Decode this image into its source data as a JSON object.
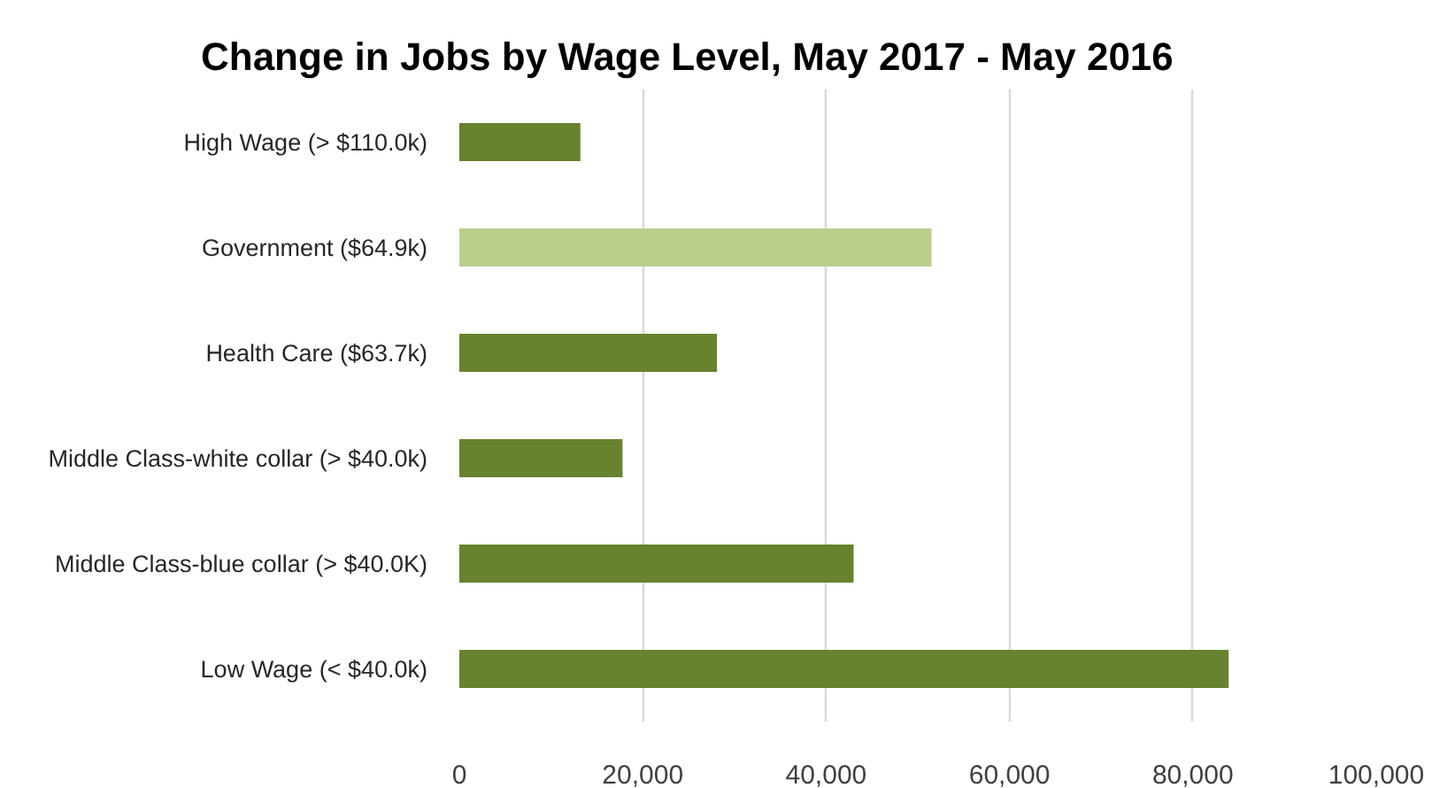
{
  "chart_data": {
    "type": "bar",
    "orientation": "horizontal",
    "title": "Change in Jobs by Wage Level, May 2017 - May 2016",
    "categories": [
      "High Wage (> $110.0k)",
      "Government ($64.9k)",
      "Health Care ($63.7k)",
      "Middle Class-white collar (> $40.0k)",
      "Middle Class-blue collar (> $40.0K)",
      "Low Wage (< $40.0k)"
    ],
    "values": [
      13200,
      51500,
      28100,
      17800,
      43000,
      83900
    ],
    "colors": [
      "#68822f",
      "#b9cf8b",
      "#68822f",
      "#68822f",
      "#68822f",
      "#68822f"
    ],
    "xlim": [
      0,
      100000
    ],
    "xticks": [
      0,
      {
        "value": 20000,
        "label": "20,000"
      },
      {
        "value": 40000,
        "label": "40,000"
      },
      {
        "value": 60000,
        "label": "60,000"
      },
      {
        "value": 80000,
        "label": "80,000"
      },
      {
        "value": 100000,
        "label": "100,000"
      }
    ],
    "grid": "x"
  }
}
